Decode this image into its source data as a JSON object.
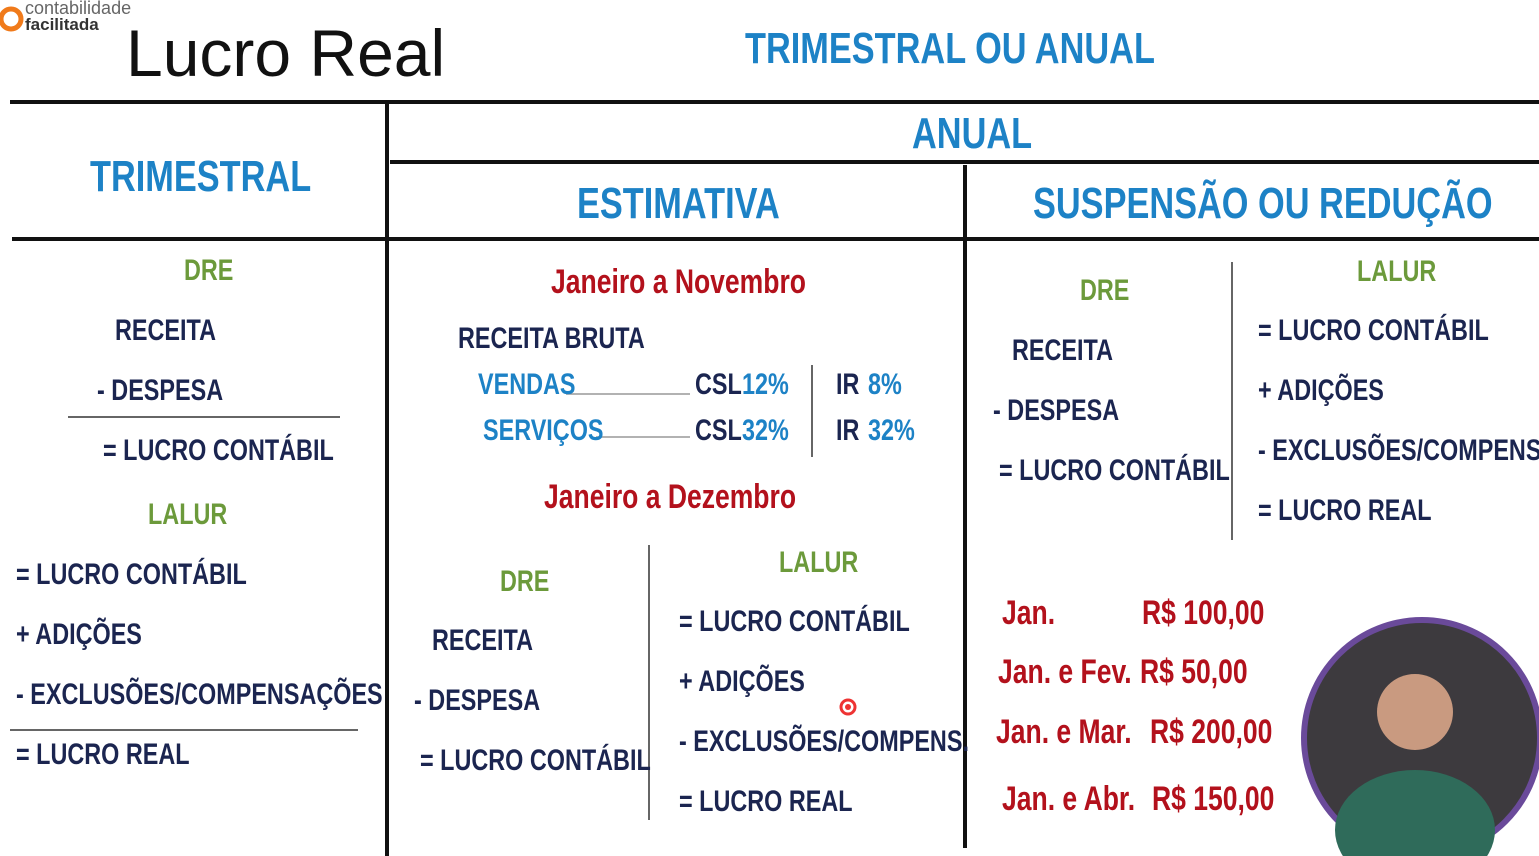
{
  "logo": {
    "line1": "contabilidade",
    "line2": "facilitada"
  },
  "title": "Lucro Real",
  "subtitle": "TRIMESTRAL OU ANUAL",
  "trimestral": {
    "heading": "TRIMESTRAL",
    "dre": {
      "label": "DRE",
      "lines": [
        "RECEITA",
        "- DESPESA",
        "= LUCRO CONTÁBIL"
      ]
    },
    "lalur": {
      "label": "LALUR",
      "lines": [
        "= LUCRO CONTÁBIL",
        "+ ADIÇÕES",
        "- EXCLUSÕES/COMPENSAÇÕES",
        "= LUCRO REAL"
      ]
    }
  },
  "anual": {
    "heading": "ANUAL",
    "estimativa": {
      "heading": "ESTIMATIVA",
      "period1": "Janeiro a Novembro",
      "receita_bruta": "RECEITA BRUTA",
      "rows": [
        {
          "activity": "VENDAS",
          "csl_label": "CSL",
          "csl": "12%",
          "ir_label": "IR",
          "ir": "8%"
        },
        {
          "activity": "SERVIÇOS",
          "csl_label": "CSL",
          "csl": "32%",
          "ir_label": "IR",
          "ir": "32%"
        }
      ],
      "period2": "Janeiro a Dezembro",
      "dre": {
        "label": "DRE",
        "lines": [
          "RECEITA",
          "- DESPESA",
          "= LUCRO CONTÁBIL"
        ]
      },
      "lalur": {
        "label": "LALUR",
        "lines": [
          "= LUCRO CONTÁBIL",
          "+ ADIÇÕES",
          "- EXCLUSÕES/COMPENS.",
          "= LUCRO REAL"
        ]
      }
    },
    "suspensao": {
      "heading": "SUSPENSÃO OU REDUÇÃO",
      "dre": {
        "label": "DRE",
        "lines": [
          "RECEITA",
          "- DESPESA",
          "= LUCRO CONTÁBIL"
        ]
      },
      "lalur": {
        "label": "LALUR",
        "lines": [
          "= LUCRO CONTÁBIL",
          "+ ADIÇÕES",
          "- EXCLUSÕES/COMPENS.",
          "= LUCRO REAL"
        ]
      },
      "payments": [
        {
          "period": "Jan.",
          "amount": "R$ 100,00"
        },
        {
          "period": "Jan. e Fev.",
          "amount": "R$ 50,00"
        },
        {
          "period": "Jan. e Mar.",
          "amount": "R$ 200,00"
        },
        {
          "period": "Jan. e Abr.",
          "amount": "R$ 150,00"
        }
      ]
    }
  }
}
